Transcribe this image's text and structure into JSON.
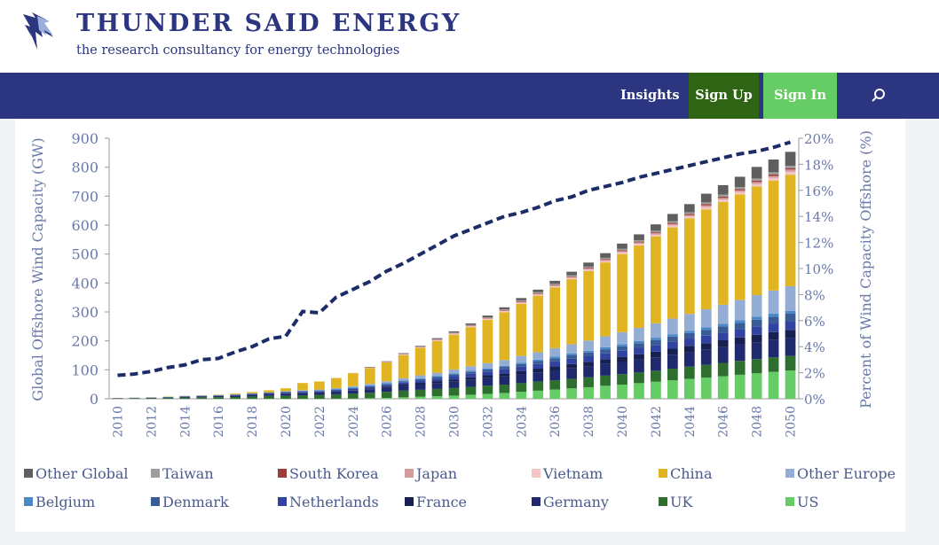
{
  "site": {
    "title": "THUNDER SAID ENERGY",
    "tagline": "the research consultancy for energy technologies",
    "logo_icon": "lightning-bolt-logo-icon"
  },
  "nav": {
    "insights": "Insights",
    "sign_up": "Sign Up",
    "sign_in": "Sign In",
    "search_icon": "search-icon"
  },
  "colors": {
    "brand_navy": "#2b3580",
    "sign_up_bg": "#2e6414",
    "sign_in_bg": "#66cc66",
    "line": "#1c2c66"
  },
  "chart_data": {
    "type": "bar",
    "stacked": true,
    "title": "",
    "ylabel": "Global Offshore Wind Capacity (GW)",
    "y2label": "Percent of Wind Capacity Offshore (%)",
    "ylim": [
      0,
      900
    ],
    "y2lim": [
      0,
      20
    ],
    "yticks": [
      "900",
      "800",
      "700",
      "600",
      "500",
      "400",
      "300",
      "200",
      "100",
      "0"
    ],
    "y2ticks": [
      "20%",
      "18%",
      "16%",
      "14%",
      "12%",
      "10%",
      "8%",
      "6%",
      "4%",
      "2%",
      "0%"
    ],
    "xtick_labels": [
      "2010",
      "2012",
      "2014",
      "2016",
      "2018",
      "2020",
      "2022",
      "2024",
      "2026",
      "2028",
      "2030",
      "2032",
      "2034",
      "2036",
      "2038",
      "2040",
      "2042",
      "2044",
      "2046",
      "2048",
      "2050"
    ],
    "grid": false,
    "legend_position": "bottom",
    "categories": [
      2010,
      2011,
      2012,
      2013,
      2014,
      2015,
      2016,
      2017,
      2018,
      2019,
      2020,
      2021,
      2022,
      2023,
      2024,
      2025,
      2026,
      2027,
      2028,
      2029,
      2030,
      2031,
      2032,
      2033,
      2034,
      2035,
      2036,
      2037,
      2038,
      2039,
      2040,
      2041,
      2042,
      2043,
      2044,
      2045,
      2046,
      2047,
      2048,
      2049,
      2050
    ],
    "series": [
      {
        "name": "US",
        "color": "#66cc66",
        "values": [
          0,
          0,
          0,
          0,
          0,
          0,
          0.03,
          0.03,
          0.03,
          0.03,
          0.04,
          0.1,
          0.1,
          0.5,
          1,
          2,
          3,
          5,
          7,
          9,
          11,
          14,
          17,
          20,
          24,
          28,
          32,
          36,
          40,
          45,
          49,
          54,
          59,
          64,
          69,
          73,
          78,
          83,
          88,
          93,
          98
        ]
      },
      {
        "name": "UK",
        "color": "#2e6e2e",
        "values": [
          1.3,
          1.8,
          2.7,
          3.7,
          4.5,
          5.1,
          5.3,
          6.1,
          7.8,
          9.7,
          10.4,
          12,
          13.5,
          15,
          17,
          19,
          21,
          23,
          24,
          25,
          26,
          27,
          28,
          29,
          30,
          31,
          32,
          33,
          34,
          35,
          36,
          37,
          38,
          40,
          42,
          44,
          46,
          48,
          49,
          50,
          50
        ]
      },
      {
        "name": "Germany",
        "color": "#1f2a6e",
        "values": [
          0.1,
          0.2,
          0.3,
          0.9,
          2.4,
          3.3,
          4.1,
          5.4,
          6.4,
          7.5,
          7.7,
          7.8,
          8.1,
          9,
          10,
          12,
          14,
          16,
          18,
          20,
          22,
          24,
          26,
          28,
          30,
          32,
          34,
          36,
          38,
          40,
          42,
          44,
          46,
          48,
          50,
          52,
          54,
          56,
          58,
          60,
          62
        ]
      },
      {
        "name": "France",
        "color": "#172050",
        "values": [
          0,
          0,
          0,
          0,
          0,
          0,
          0,
          0,
          0,
          0,
          0,
          0.5,
          0.5,
          1,
          2,
          3,
          4,
          5,
          6,
          7,
          8,
          9,
          10,
          11,
          12,
          13,
          14,
          15,
          16,
          17,
          18,
          19,
          20,
          21,
          22,
          23,
          24,
          25,
          26,
          27,
          28
        ]
      },
      {
        "name": "Netherlands",
        "color": "#3142a0",
        "values": [
          0.2,
          0.2,
          0.2,
          0.2,
          0.4,
          0.4,
          1,
          1.1,
          1.1,
          1,
          2.5,
          3,
          3,
          3.5,
          4,
          5,
          6,
          7,
          8,
          9,
          11,
          12,
          13,
          14,
          15,
          16,
          17,
          18,
          19,
          20,
          21,
          22,
          23,
          24,
          25,
          26,
          27,
          28,
          29,
          30,
          31
        ]
      },
      {
        "name": "Denmark",
        "color": "#3a5c96",
        "values": [
          0.8,
          0.9,
          0.9,
          1.3,
          1.3,
          1.3,
          1.3,
          1.3,
          1.7,
          1.7,
          2.3,
          2.3,
          2.3,
          2.5,
          3,
          3,
          3.5,
          4,
          5,
          5,
          6,
          7,
          7,
          8,
          9,
          10,
          11,
          12,
          13,
          14,
          15,
          16,
          17,
          18,
          19,
          20,
          21,
          22,
          23,
          24,
          25
        ]
      },
      {
        "name": "Belgium",
        "color": "#4a88c8",
        "values": [
          0.2,
          0.2,
          0.4,
          0.6,
          0.7,
          0.7,
          0.7,
          0.9,
          1.2,
          1.6,
          2.3,
          2.3,
          2.3,
          2.3,
          2.5,
          2.7,
          3,
          3,
          3,
          3,
          3.5,
          3.5,
          4,
          4,
          5,
          5,
          6,
          6,
          6,
          7,
          7,
          7,
          8,
          8,
          8,
          9,
          9,
          9,
          10,
          10,
          10
        ]
      },
      {
        "name": "Other Europe",
        "color": "#93add4",
        "values": [
          0.2,
          0.2,
          0.3,
          0.3,
          0.3,
          0.5,
          0.5,
          0.6,
          0.8,
          0.8,
          1,
          1.5,
          2,
          3,
          4,
          5,
          6,
          8,
          10,
          12,
          14,
          16,
          18,
          20,
          23,
          26,
          29,
          32,
          35,
          38,
          42,
          46,
          50,
          54,
          58,
          62,
          66,
          70,
          75,
          80,
          85
        ]
      },
      {
        "name": "China",
        "color": "#e1b422",
        "values": [
          0.1,
          0.2,
          0.4,
          0.5,
          0.7,
          1,
          1.6,
          2.8,
          4.5,
          7,
          10,
          25,
          28,
          35,
          45,
          55,
          65,
          80,
          95,
          110,
          120,
          135,
          150,
          165,
          180,
          195,
          210,
          225,
          240,
          255,
          270,
          285,
          300,
          315,
          330,
          345,
          355,
          365,
          375,
          380,
          385
        ]
      },
      {
        "name": "Vietnam",
        "color": "#f0c6c6",
        "values": [
          0,
          0,
          0,
          0,
          0,
          0,
          0,
          0,
          0,
          0,
          0,
          0,
          0,
          0.5,
          1,
          1,
          2,
          2,
          2,
          3,
          3,
          3,
          3,
          4,
          4,
          4,
          4,
          5,
          5,
          5,
          6,
          6,
          6,
          7,
          7,
          8,
          8,
          8,
          9,
          9,
          10
        ]
      },
      {
        "name": "Japan",
        "color": "#d59a9a",
        "values": [
          0,
          0,
          0,
          0,
          0,
          0,
          0,
          0,
          0,
          0,
          0,
          0,
          0,
          0,
          0,
          0.5,
          0.5,
          1,
          1,
          1,
          2,
          2,
          2,
          2,
          3,
          3,
          3,
          3,
          4,
          4,
          4,
          4,
          5,
          5,
          5,
          6,
          6,
          6,
          7,
          7,
          8
        ]
      },
      {
        "name": "South Korea",
        "color": "#9e3b3b",
        "values": [
          0,
          0,
          0,
          0,
          0,
          0,
          0,
          0,
          0,
          0,
          0,
          0,
          0,
          0,
          0,
          0.5,
          0.5,
          1,
          1,
          1,
          1,
          1,
          1.5,
          1.5,
          2,
          2,
          2,
          2,
          2.5,
          2.5,
          3,
          3,
          3,
          3.5,
          3.5,
          4,
          4,
          4,
          4.5,
          4.5,
          5
        ]
      },
      {
        "name": "Taiwan",
        "color": "#9d9d9d",
        "values": [
          0,
          0,
          0,
          0,
          0,
          0,
          0,
          0,
          0,
          0,
          0,
          0,
          0,
          0,
          0,
          0.5,
          0.5,
          1,
          1,
          1.5,
          1.5,
          2,
          2,
          2.5,
          3,
          3,
          3.5,
          4,
          4,
          4.5,
          5,
          5,
          5.5,
          6,
          6,
          6.5,
          7,
          7,
          7.5,
          8,
          8
        ]
      },
      {
        "name": "Other Global",
        "color": "#5f5f5f",
        "values": [
          0,
          0,
          0,
          0,
          0,
          0,
          0,
          0,
          0,
          0,
          0,
          0,
          0,
          0,
          0,
          0.5,
          1,
          1.5,
          2,
          3,
          4,
          5,
          6,
          7,
          8,
          9,
          10,
          12,
          14,
          16,
          18,
          20,
          22,
          25,
          28,
          30,
          33,
          36,
          40,
          44,
          48
        ]
      }
    ],
    "line_series": {
      "name": "",
      "axis": "secondary",
      "style": "dashed",
      "color": "#1c2c66",
      "values": [
        1.8,
        1.9,
        2.1,
        2.4,
        2.6,
        3,
        3.1,
        3.6,
        4,
        4.6,
        4.8,
        6.7,
        6.6,
        7.8,
        8.4,
        9,
        9.8,
        10.4,
        11.1,
        11.8,
        12.5,
        13,
        13.5,
        14,
        14.3,
        14.7,
        15.2,
        15.5,
        16,
        16.3,
        16.6,
        17,
        17.3,
        17.6,
        17.9,
        18.2,
        18.5,
        18.8,
        19,
        19.3,
        19.7
      ]
    }
  },
  "legend": {
    "items": [
      "Other Global",
      "Taiwan",
      "South Korea",
      "Japan",
      "Vietnam",
      "China",
      "Other Europe",
      "Belgium",
      "Denmark",
      "Netherlands",
      "France",
      "Germany",
      "UK",
      "US"
    ]
  }
}
